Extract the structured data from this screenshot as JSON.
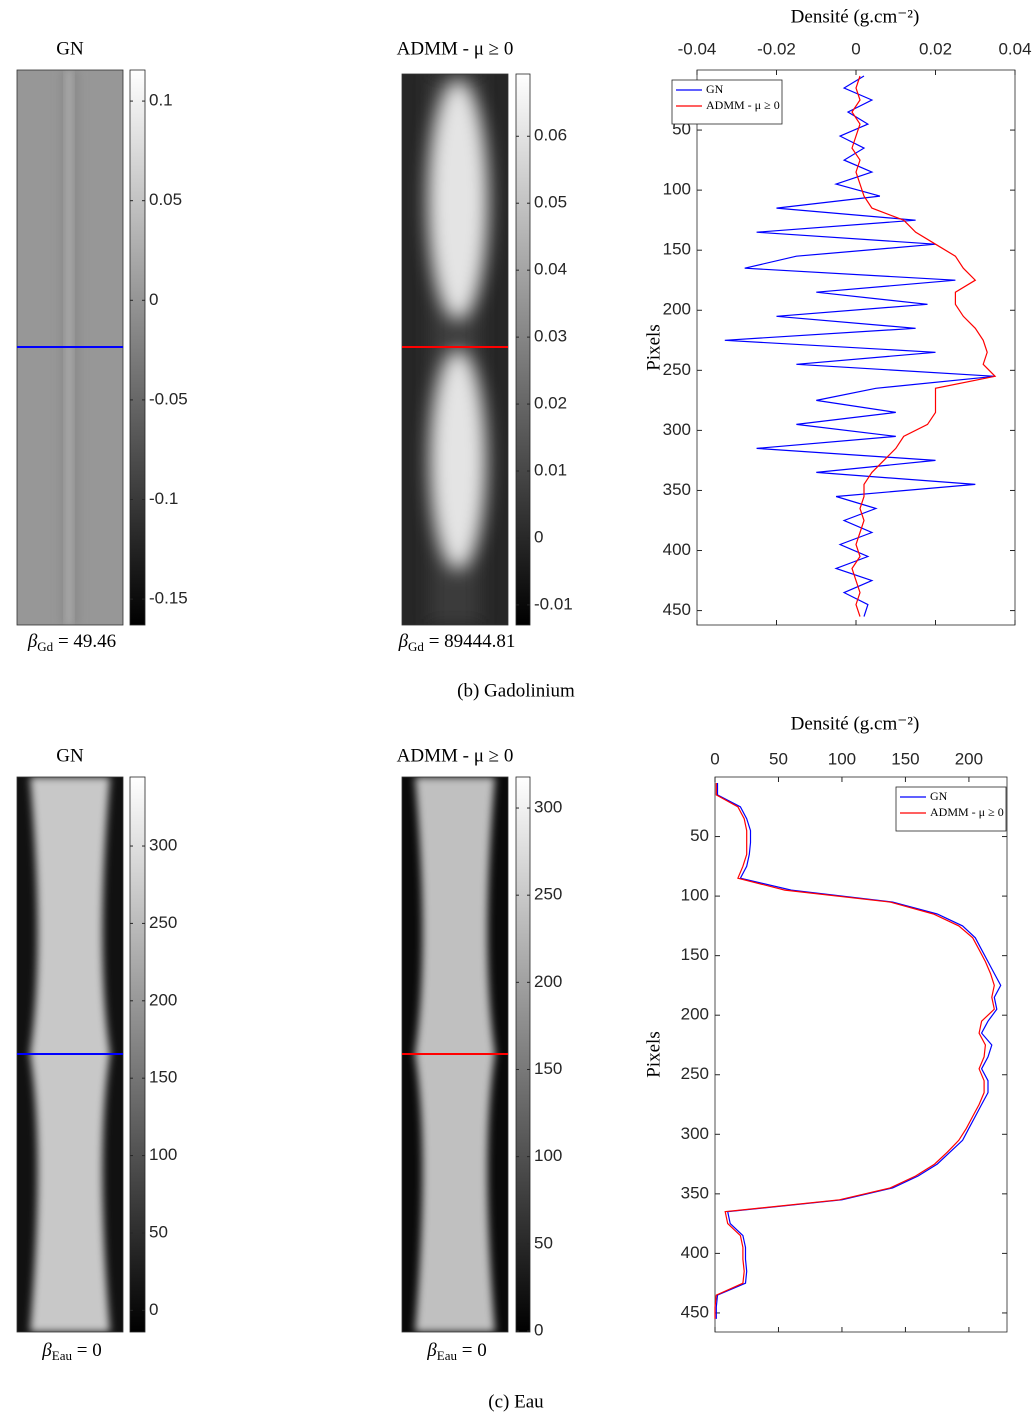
{
  "figure_captions": [
    "(b) Gadolinium",
    "(c) Eau"
  ],
  "chart_data": [
    {
      "type": "image",
      "title": "GN",
      "clim": [
        -0.163,
        0.1156
      ],
      "cticks": [
        0.1,
        0.05,
        0,
        -0.05,
        -0.1,
        -0.15
      ],
      "caption": {
        "symbol": "β",
        "sub": "Gd",
        "rest": " = 49.46"
      }
    },
    {
      "type": "image",
      "title": "ADMM - μ ≥ 0",
      "clim": [
        -0.013,
        0.0693
      ],
      "cticks": [
        0.06,
        0.05,
        0.04,
        0.03,
        0.02,
        0.01,
        0,
        -0.01
      ],
      "caption": {
        "symbol": "β",
        "sub": "Gd",
        "rest": " = 89444.81"
      }
    },
    {
      "type": "line",
      "xlabel": "Densité (g.cm⁻²)",
      "ylabel": "Pixels",
      "xlim": [
        -0.04,
        0.04
      ],
      "xticks": [
        -0.04,
        -0.02,
        0,
        0.02,
        0.04
      ],
      "ylim": [
        0,
        462
      ],
      "yticks": [
        50,
        100,
        150,
        200,
        250,
        300,
        350,
        400,
        450
      ],
      "legend": "upper left",
      "y": [
        5,
        15,
        25,
        35,
        45,
        55,
        65,
        75,
        85,
        95,
        105,
        115,
        125,
        135,
        145,
        155,
        165,
        175,
        185,
        195,
        205,
        215,
        225,
        235,
        245,
        255,
        265,
        275,
        285,
        295,
        305,
        315,
        325,
        335,
        345,
        355,
        365,
        375,
        385,
        395,
        405,
        415,
        425,
        435,
        445,
        455
      ],
      "series": [
        {
          "name": "GN",
          "color": "#0000ff",
          "values": [
            0.002,
            -0.003,
            0.004,
            -0.002,
            0.003,
            -0.004,
            0.002,
            -0.003,
            0.004,
            -0.005,
            0.006,
            -0.02,
            0.015,
            -0.025,
            0.02,
            -0.015,
            -0.028,
            0.025,
            -0.01,
            0.018,
            -0.02,
            0.015,
            -0.033,
            0.02,
            -0.015,
            0.035,
            0.005,
            -0.01,
            0.01,
            -0.015,
            0.01,
            -0.025,
            0.02,
            -0.01,
            0.03,
            -0.005,
            0.005,
            -0.003,
            0.004,
            -0.004,
            0.003,
            -0.005,
            0.004,
            -0.003,
            0.003,
            0.002
          ]
        },
        {
          "name": "ADMM - μ ≥ 0",
          "color": "#ff0000",
          "values": [
            0.001,
            0,
            0.001,
            -0.001,
            0.001,
            0,
            -0.001,
            0.001,
            0,
            0.001,
            0.002,
            0.004,
            0.012,
            0.015,
            0.02,
            0.025,
            0.027,
            0.03,
            0.025,
            0.025,
            0.027,
            0.03,
            0.032,
            0.033,
            0.032,
            0.035,
            0.02,
            0.02,
            0.02,
            0.018,
            0.012,
            0.01,
            0.007,
            0.004,
            0.002,
            0.002,
            0.001,
            0.002,
            0.001,
            0,
            0.001,
            -0.001,
            0,
            0.001,
            0,
            0.001
          ]
        }
      ]
    },
    {
      "type": "image",
      "title": "GN",
      "clim": [
        -14,
        344.6
      ],
      "cticks": [
        300,
        250,
        200,
        150,
        100,
        50,
        0
      ],
      "caption": {
        "symbol": "β",
        "sub": "Eau",
        "rest": " = 0"
      }
    },
    {
      "type": "image",
      "title": "ADMM - μ ≥ 0",
      "clim": [
        -0.6,
        317.8
      ],
      "cticks": [
        300,
        250,
        200,
        150,
        100,
        50,
        0
      ],
      "caption": {
        "symbol": "β",
        "sub": "Eau",
        "rest": " = 0"
      }
    },
    {
      "type": "line",
      "xlabel": "Densité (g.cm⁻²)",
      "ylabel": "Pixels",
      "xlim": [
        0,
        230
      ],
      "xticks": [
        0,
        50,
        100,
        150,
        200
      ],
      "ylim": [
        0,
        466
      ],
      "yticks": [
        50,
        100,
        150,
        200,
        250,
        300,
        350,
        400,
        450
      ],
      "legend": "upper right",
      "y": [
        5,
        15,
        25,
        35,
        45,
        55,
        65,
        75,
        85,
        95,
        105,
        115,
        125,
        135,
        145,
        155,
        165,
        175,
        185,
        195,
        205,
        215,
        225,
        235,
        245,
        255,
        265,
        275,
        285,
        295,
        305,
        315,
        325,
        335,
        345,
        355,
        365,
        375,
        385,
        395,
        405,
        415,
        425,
        435,
        445,
        455
      ],
      "series": [
        {
          "name": "GN",
          "color": "#0000ff",
          "values": [
            2,
            2,
            20,
            25,
            28,
            28,
            27,
            25,
            20,
            60,
            140,
            175,
            195,
            205,
            210,
            215,
            220,
            225,
            220,
            222,
            215,
            210,
            218,
            215,
            210,
            215,
            215,
            210,
            205,
            200,
            195,
            185,
            175,
            160,
            140,
            100,
            10,
            12,
            22,
            24,
            24,
            25,
            24,
            2,
            1,
            1
          ]
        },
        {
          "name": "ADMM - μ ≥ 0",
          "color": "#ff0000",
          "values": [
            1,
            1,
            18,
            23,
            25,
            25,
            25,
            22,
            18,
            55,
            138,
            172,
            192,
            203,
            208,
            213,
            217,
            220,
            218,
            220,
            210,
            208,
            213,
            212,
            208,
            212,
            212,
            208,
            203,
            198,
            192,
            183,
            173,
            158,
            138,
            98,
            8,
            10,
            20,
            22,
            22,
            23,
            22,
            1,
            0,
            0
          ]
        }
      ]
    }
  ]
}
